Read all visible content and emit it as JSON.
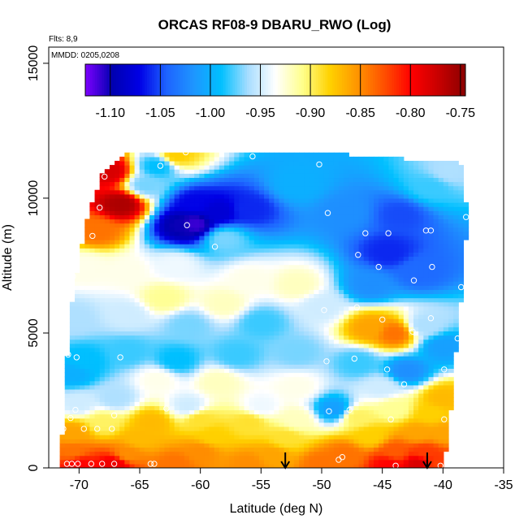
{
  "chart_data": {
    "type": "heatmap",
    "title": "ORCAS RF08-9 DBARU_RWO (Log)",
    "flights_label": "Flts: 8,9",
    "mmdd_label": "MMDD: 0205,0208",
    "xlabel": "Latitude (deg N)",
    "ylabel": "Altitude (m)",
    "xlim": [
      -72.5,
      -35
    ],
    "ylim": [
      0,
      15600
    ],
    "x_ticks": [
      -70,
      -65,
      -60,
      -55,
      -50,
      -45,
      -40,
      -35
    ],
    "y_ticks": [
      0,
      5000,
      10000,
      15000
    ],
    "colorbar": {
      "ticks": [
        -1.1,
        -1.05,
        -1.0,
        -0.95,
        -0.9,
        -0.85,
        -0.8,
        -0.75
      ],
      "tick_labels": [
        "-1.10",
        "-1.05",
        "-1.00",
        "-0.95",
        "-0.90",
        "-0.85",
        "-0.80",
        "-0.75"
      ],
      "range": [
        -1.125,
        -0.745
      ],
      "colors": [
        "#7f00ff",
        "#0000b0",
        "#0000e6",
        "#1e64ff",
        "#1e96ff",
        "#00c0ff",
        "#a8ddff",
        "#ffffff",
        "#ffff8c",
        "#ffd200",
        "#ff9600",
        "#ff5000",
        "#ff0000",
        "#c80000",
        "#8b0000"
      ]
    },
    "domain_polygon": [
      [
        -71.5,
        150
      ],
      [
        -71.2,
        3000
      ],
      [
        -70.6,
        6000
      ],
      [
        -69.5,
        9000
      ],
      [
        -68.0,
        11000
      ],
      [
        -66.0,
        11700
      ],
      [
        -52.0,
        11750
      ],
      [
        -38.5,
        11300
      ],
      [
        -38.0,
        9500
      ],
      [
        -38.3,
        7000
      ],
      [
        -38.8,
        5000
      ],
      [
        -39.2,
        3000
      ],
      [
        -39.6,
        800
      ],
      [
        -40.1,
        0
      ],
      [
        -71.6,
        0
      ]
    ],
    "field_points": [
      {
        "lat": -66.5,
        "alt": 9800,
        "v": -0.76
      },
      {
        "lat": -67.5,
        "alt": 11000,
        "v": -0.78
      },
      {
        "lat": -68.5,
        "alt": 8800,
        "v": -0.84
      },
      {
        "lat": -69.5,
        "alt": 7500,
        "v": -0.93
      },
      {
        "lat": -70.5,
        "alt": 5500,
        "v": -0.96
      },
      {
        "lat": -70.5,
        "alt": 3500,
        "v": -1.0
      },
      {
        "lat": -64.5,
        "alt": 10500,
        "v": -0.97
      },
      {
        "lat": -63.5,
        "alt": 11200,
        "v": -0.99
      },
      {
        "lat": -62.0,
        "alt": 11600,
        "v": -0.88
      },
      {
        "lat": -60.5,
        "alt": 9800,
        "v": -1.07
      },
      {
        "lat": -58.5,
        "alt": 9500,
        "v": -1.08
      },
      {
        "lat": -56.0,
        "alt": 9600,
        "v": -1.06
      },
      {
        "lat": -61.5,
        "alt": 9000,
        "v": -1.1
      },
      {
        "lat": -60.5,
        "alt": 9050,
        "v": -1.11
      },
      {
        "lat": -52.0,
        "alt": 10500,
        "v": -1.0
      },
      {
        "lat": -48.0,
        "alt": 9500,
        "v": -1.02
      },
      {
        "lat": -43.5,
        "alt": 9400,
        "v": -1.05
      },
      {
        "lat": -41.0,
        "alt": 10400,
        "v": -0.98
      },
      {
        "lat": -39.5,
        "alt": 11000,
        "v": -0.96
      },
      {
        "lat": -44.5,
        "alt": 8000,
        "v": -1.06
      },
      {
        "lat": -42.0,
        "alt": 7300,
        "v": -1.04
      },
      {
        "lat": -58.0,
        "alt": 8500,
        "v": -0.97
      },
      {
        "lat": -62.0,
        "alt": 7500,
        "v": -0.94
      },
      {
        "lat": -66.0,
        "alt": 7300,
        "v": -0.93
      },
      {
        "lat": -56.0,
        "alt": 7000,
        "v": -0.93
      },
      {
        "lat": -52.0,
        "alt": 6800,
        "v": -0.92
      },
      {
        "lat": -63.0,
        "alt": 6300,
        "v": -0.91
      },
      {
        "lat": -58.0,
        "alt": 6100,
        "v": -0.92
      },
      {
        "lat": -66.0,
        "alt": 5700,
        "v": -0.95
      },
      {
        "lat": -61.0,
        "alt": 5300,
        "v": -0.97
      },
      {
        "lat": -55.0,
        "alt": 5400,
        "v": -0.98
      },
      {
        "lat": -50.0,
        "alt": 6000,
        "v": -0.95
      },
      {
        "lat": -46.0,
        "alt": 6800,
        "v": -1.02
      },
      {
        "lat": -46.0,
        "alt": 5200,
        "v": -0.86
      },
      {
        "lat": -44.0,
        "alt": 5000,
        "v": -0.84
      },
      {
        "lat": -41.5,
        "alt": 5300,
        "v": -0.96
      },
      {
        "lat": -40.0,
        "alt": 4500,
        "v": -1.01
      },
      {
        "lat": -43.0,
        "alt": 3600,
        "v": -1.02
      },
      {
        "lat": -47.0,
        "alt": 3900,
        "v": -0.98
      },
      {
        "lat": -66.0,
        "alt": 4300,
        "v": -0.98
      },
      {
        "lat": -62.0,
        "alt": 4000,
        "v": -0.99
      },
      {
        "lat": -57.0,
        "alt": 4200,
        "v": -0.98
      },
      {
        "lat": -52.0,
        "alt": 4300,
        "v": -0.97
      },
      {
        "lat": -69.5,
        "alt": 4000,
        "v": -0.99
      },
      {
        "lat": -63.5,
        "alt": 3300,
        "v": -0.93
      },
      {
        "lat": -58.5,
        "alt": 3200,
        "v": -0.92
      },
      {
        "lat": -52.0,
        "alt": 3000,
        "v": -0.93
      },
      {
        "lat": -45.0,
        "alt": 3000,
        "v": -0.95
      },
      {
        "lat": -67.0,
        "alt": 2600,
        "v": -0.96
      },
      {
        "lat": -70.0,
        "alt": 2400,
        "v": -0.95
      },
      {
        "lat": -61.0,
        "alt": 2300,
        "v": -0.95
      },
      {
        "lat": -55.0,
        "alt": 2300,
        "v": -0.94
      },
      {
        "lat": -49.0,
        "alt": 2200,
        "v": -1.01
      },
      {
        "lat": -44.0,
        "alt": 2200,
        "v": -0.91
      },
      {
        "lat": -41.0,
        "alt": 2000,
        "v": -0.88
      },
      {
        "lat": -40.0,
        "alt": 2600,
        "v": -0.87
      },
      {
        "lat": -68.0,
        "alt": 1700,
        "v": -0.9
      },
      {
        "lat": -64.0,
        "alt": 1700,
        "v": -0.87
      },
      {
        "lat": -60.0,
        "alt": 1800,
        "v": -0.89
      },
      {
        "lat": -56.0,
        "alt": 1700,
        "v": -0.89
      },
      {
        "lat": -52.0,
        "alt": 1800,
        "v": -0.92
      },
      {
        "lat": -47.0,
        "alt": 1900,
        "v": -0.9
      },
      {
        "lat": -70.5,
        "alt": 1300,
        "v": -0.86
      },
      {
        "lat": -65.0,
        "alt": 1100,
        "v": -0.87
      },
      {
        "lat": -59.0,
        "alt": 1200,
        "v": -0.88
      },
      {
        "lat": -53.0,
        "alt": 1100,
        "v": -0.89
      },
      {
        "lat": -46.0,
        "alt": 1200,
        "v": -0.88
      },
      {
        "lat": -42.0,
        "alt": 1300,
        "v": -0.86
      },
      {
        "lat": -40.0,
        "alt": 1300,
        "v": -0.86
      },
      {
        "lat": -70.5,
        "alt": 600,
        "v": -0.84
      },
      {
        "lat": -66.0,
        "alt": 500,
        "v": -0.85
      },
      {
        "lat": -60.0,
        "alt": 600,
        "v": -0.85
      },
      {
        "lat": -54.0,
        "alt": 500,
        "v": -0.86
      },
      {
        "lat": -48.0,
        "alt": 500,
        "v": -0.84
      },
      {
        "lat": -44.0,
        "alt": 600,
        "v": -0.83
      },
      {
        "lat": -41.5,
        "alt": 600,
        "v": -0.82
      },
      {
        "lat": -70.0,
        "alt": 150,
        "v": -0.8
      },
      {
        "lat": -67.0,
        "alt": 150,
        "v": -0.79
      },
      {
        "lat": -62.0,
        "alt": 150,
        "v": -0.84
      },
      {
        "lat": -56.0,
        "alt": 150,
        "v": -0.85
      },
      {
        "lat": -50.0,
        "alt": 150,
        "v": -0.84
      },
      {
        "lat": -44.5,
        "alt": 150,
        "v": -0.8
      },
      {
        "lat": -42.0,
        "alt": 150,
        "v": -0.78
      },
      {
        "lat": -40.5,
        "alt": 150,
        "v": -0.82
      }
    ],
    "sample_points": [
      [
        -61.2,
        11700
      ],
      [
        -55.7,
        11550
      ],
      [
        -50.2,
        11250
      ],
      [
        -37.8,
        11150
      ],
      [
        -63.3,
        11200
      ],
      [
        -67.9,
        10800
      ],
      [
        -68.3,
        9650
      ],
      [
        -49.5,
        9450
      ],
      [
        -38.1,
        9300
      ],
      [
        -61.1,
        9000
      ],
      [
        -44.5,
        8700
      ],
      [
        -46.4,
        8700
      ],
      [
        -41.4,
        8800
      ],
      [
        -41.0,
        8800
      ],
      [
        -68.9,
        8600
      ],
      [
        -58.8,
        8200
      ],
      [
        -47.0,
        7900
      ],
      [
        -45.3,
        7450
      ],
      [
        -40.9,
        7450
      ],
      [
        -42.4,
        6950
      ],
      [
        -70.5,
        7100
      ],
      [
        -38.5,
        6700
      ],
      [
        -47.1,
        5950
      ],
      [
        -49.8,
        5850
      ],
      [
        -45.0,
        5500
      ],
      [
        -41.0,
        5550
      ],
      [
        -42.5,
        5050
      ],
      [
        -38.8,
        4800
      ],
      [
        -70.9,
        4200
      ],
      [
        -70.2,
        4100
      ],
      [
        -66.6,
        4100
      ],
      [
        -49.6,
        3950
      ],
      [
        -47.3,
        4050
      ],
      [
        -44.6,
        3650
      ],
      [
        -39.9,
        3650
      ],
      [
        -43.2,
        3100
      ],
      [
        -70.3,
        2150
      ],
      [
        -62.8,
        2200
      ],
      [
        -47.7,
        2150
      ],
      [
        -49.4,
        2100
      ],
      [
        -70.7,
        1850
      ],
      [
        -67.1,
        1950
      ],
      [
        -44.3,
        1800
      ],
      [
        -39.9,
        1800
      ],
      [
        -71.3,
        1450
      ],
      [
        -69.6,
        1450
      ],
      [
        -68.5,
        1450
      ],
      [
        -67.3,
        1450
      ],
      [
        -48.3,
        400
      ],
      [
        -48.6,
        300
      ],
      [
        -71.0,
        150
      ],
      [
        -70.6,
        150
      ],
      [
        -70.1,
        150
      ],
      [
        -69.0,
        150
      ],
      [
        -68.1,
        150
      ],
      [
        -67.1,
        150
      ],
      [
        -64.1,
        150
      ],
      [
        -63.8,
        150
      ],
      [
        -43.9,
        80
      ],
      [
        -40.2,
        80
      ]
    ],
    "flight_markers": [
      -53.0,
      -41.3
    ]
  }
}
